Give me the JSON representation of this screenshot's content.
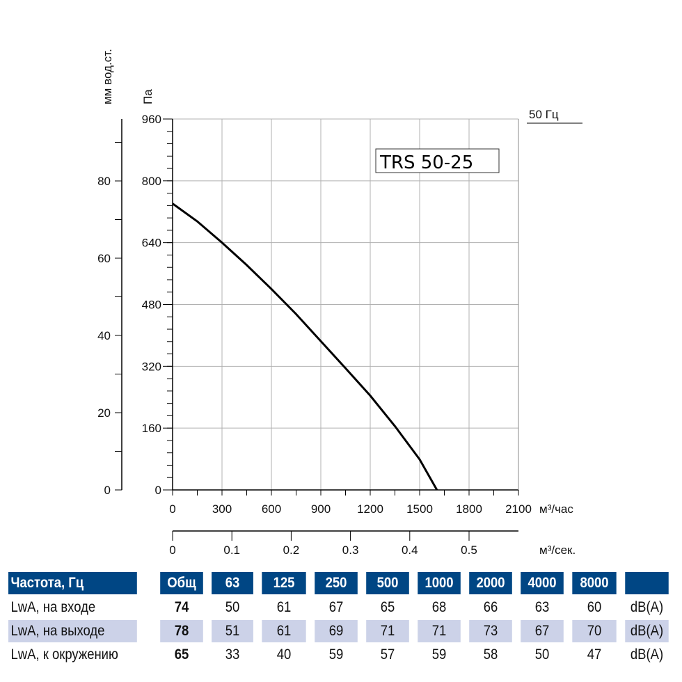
{
  "chart_data": {
    "type": "line",
    "title_box": "TRS 50-25",
    "frequency_label": "50 Гц",
    "ylabel_pa": "Па",
    "ylabel_mm": "мм вод.ст.",
    "xlabel_h": "м³/час",
    "xlabel_s": "м³/сек.",
    "xlim": [
      0,
      2100
    ],
    "ylim": [
      0,
      960
    ],
    "x_ticks": [
      0,
      300,
      600,
      900,
      1200,
      1500,
      1800,
      2100
    ],
    "y_ticks": [
      0,
      160,
      320,
      480,
      640,
      800,
      960
    ],
    "y_mm_ticks": [
      0,
      20,
      40,
      60,
      80
    ],
    "x_s_ticks": [
      0,
      0.1,
      0.2,
      0.3,
      0.4,
      0.5
    ],
    "grid": true,
    "series": [
      {
        "x": [
          0,
          150,
          300,
          450,
          600,
          750,
          900,
          1050,
          1200,
          1350,
          1500,
          1605
        ],
        "y": [
          741,
          695,
          640,
          582,
          520,
          455,
          385,
          315,
          244,
          165,
          79,
          0
        ]
      }
    ]
  },
  "table": {
    "header": [
      "Частота, Гц",
      "Общ",
      "63",
      "125",
      "250",
      "500",
      "1000",
      "2000",
      "4000",
      "8000",
      ""
    ],
    "rows": [
      [
        "LwA, на входе",
        "74",
        "50",
        "61",
        "67",
        "65",
        "68",
        "66",
        "63",
        "60",
        "dB(A)"
      ],
      [
        "LwA, на выходе",
        "78",
        "51",
        "61",
        "69",
        "71",
        "71",
        "73",
        "67",
        "70",
        "dB(A)"
      ],
      [
        "LwA, к окружению",
        "65",
        "33",
        "40",
        "59",
        "57",
        "59",
        "58",
        "50",
        "47",
        "dB(A)"
      ]
    ]
  },
  "colors": {
    "header_bg": "#004684",
    "alt_row_bg": "#ccd2e8",
    "grid": "#b0b0b0",
    "curve": "#000000"
  }
}
